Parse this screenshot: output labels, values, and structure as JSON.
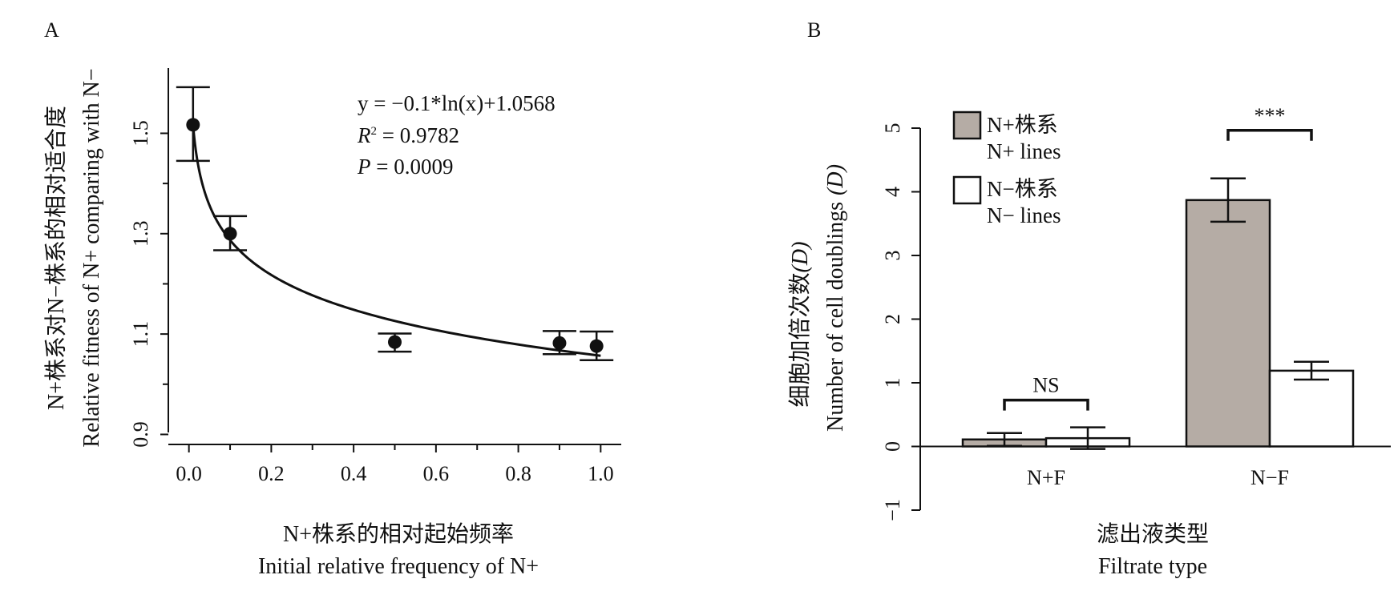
{
  "chart_data": [
    {
      "panel": "A",
      "type": "scatter",
      "title": "",
      "xlabel_cn": "N+株系的相对起始频率",
      "xlabel_en": "Initial relative frequency of N+",
      "ylabel_cn": "N+株系对N−株系的相对适合度",
      "ylabel_en": "Relative fitness of N+ comparing with N−",
      "xlim": [
        -0.05,
        1.05
      ],
      "ylim": [
        0.88,
        1.63
      ],
      "xticks": [
        0.0,
        0.2,
        0.4,
        0.6,
        0.8,
        1.0
      ],
      "xtick_labels": [
        "0.0",
        "0.2",
        "0.4",
        "0.6",
        "0.8",
        "1.0"
      ],
      "yticks": [
        0.9,
        1.1,
        1.3,
        1.5
      ],
      "ytick_labels": [
        "0.9",
        "1.1",
        "1.3",
        "1.5"
      ],
      "points": [
        {
          "x": 0.01,
          "y": 1.517,
          "lo": 1.445,
          "hi": 1.592
        },
        {
          "x": 0.1,
          "y": 1.3,
          "lo": 1.267,
          "hi": 1.335
        },
        {
          "x": 0.5,
          "y": 1.084,
          "lo": 1.065,
          "hi": 1.101
        },
        {
          "x": 0.9,
          "y": 1.082,
          "lo": 1.06,
          "hi": 1.106
        },
        {
          "x": 0.99,
          "y": 1.076,
          "lo": 1.048,
          "hi": 1.105
        }
      ],
      "fit": {
        "a": -0.1,
        "b": 1.0568,
        "x_from": 0.01,
        "x_to": 1.0
      },
      "equation": {
        "line1": "y = −0.1*ln(x)+1.0568",
        "r2_symbol": "R",
        "r2_sup": "2",
        "r2_value": " = 0.9782",
        "p_symbol": "P",
        "p_value": " = 0.0009"
      },
      "grid": false
    },
    {
      "panel": "B",
      "type": "bar",
      "title": "",
      "xlabel_cn": "滤出液类型",
      "xlabel_en": "Filtrate type",
      "ylabel_cn": "细胞加倍次数",
      "ylabel_cn_symbol": "(D)",
      "ylabel_en": "Number of cell doublings",
      "ylabel_en_symbol": "(D)",
      "ylim": [
        -1,
        5
      ],
      "yticks": [
        -1,
        0,
        1,
        2,
        3,
        4,
        5
      ],
      "ytick_labels": [
        "−1",
        "0",
        "1",
        "2",
        "3",
        "4",
        "5"
      ],
      "categories": [
        "N+F",
        "N−F"
      ],
      "series": [
        {
          "name_cn": "N+株系",
          "name_en": "N+ lines",
          "color": "#b5aca5",
          "values": [
            0.11,
            3.87
          ],
          "err": [
            0.1,
            0.34
          ]
        },
        {
          "name_cn": "N−株系",
          "name_en": "N− lines",
          "color": "#ffffff",
          "values": [
            0.13,
            1.19
          ],
          "err": [
            0.17,
            0.14
          ]
        }
      ],
      "significance": [
        "NS",
        "***"
      ],
      "legend_position": "top-left",
      "grid": false
    }
  ]
}
